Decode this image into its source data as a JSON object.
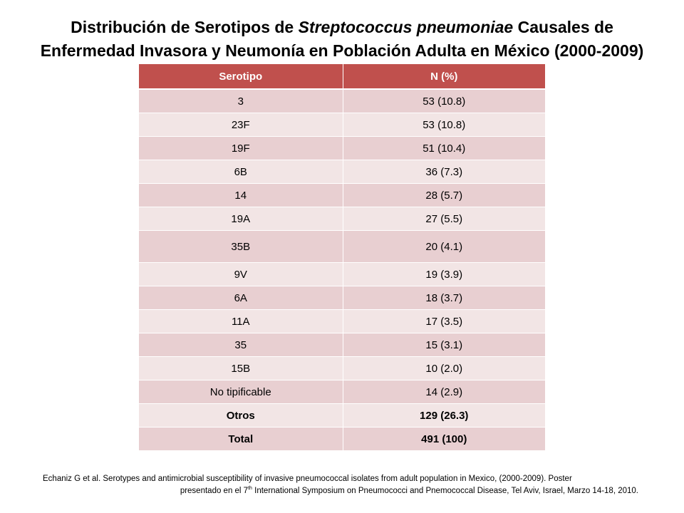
{
  "title": {
    "part1": "Distribución de Serotipos de ",
    "italic": "Streptococcus pneumoniae",
    "part2": " Causales de Enfermedad Invasora y Neumonía en Población Adulta en México (2000-2009)"
  },
  "table": {
    "headers": [
      "Serotipo",
      "N (%)"
    ],
    "rows": [
      {
        "serotype": "3",
        "n": "53 (10.8)"
      },
      {
        "serotype": "23F",
        "n": "53 (10.8)"
      },
      {
        "serotype": "19F",
        "n": "51 (10.4)"
      },
      {
        "serotype": "6B",
        "n": "36 (7.3)"
      },
      {
        "serotype": "14",
        "n": "28 (5.7)"
      },
      {
        "serotype": "19A",
        "n": "27 (5.5)"
      },
      {
        "serotype": "35B",
        "n": "20 (4.1)"
      },
      {
        "serotype": "9V",
        "n": "19 (3.9)"
      },
      {
        "serotype": "6A",
        "n": "18 (3.7)"
      },
      {
        "serotype": "11A",
        "n": "17 (3.5)"
      },
      {
        "serotype": "35",
        "n": "15 (3.1)"
      },
      {
        "serotype": "15B",
        "n": "10 (2.0)"
      },
      {
        "serotype": "No tipificable",
        "n": "14 (2.9)"
      },
      {
        "serotype": "Otros",
        "n": "129 (26.3)"
      },
      {
        "serotype": "Total",
        "n": "491 (100)"
      }
    ]
  },
  "citation": {
    "line1": "Echaniz G et al. Serotypes and antimicrobial susceptibility of invasive pneumococcal isolates from adult population in Mexico, (2000-2009).  Poster",
    "line2_pre": "presentado en  el 7",
    "line2_sup": "th",
    "line2_post": " International Symposium on Pneumococci and Pnemococcal Disease,  Tel Aviv,  Israel, Marzo 14-18,  2010."
  },
  "colors": {
    "header_bg": "#c0504d",
    "row_odd": "#e8cfd1",
    "row_even": "#f2e5e5"
  }
}
